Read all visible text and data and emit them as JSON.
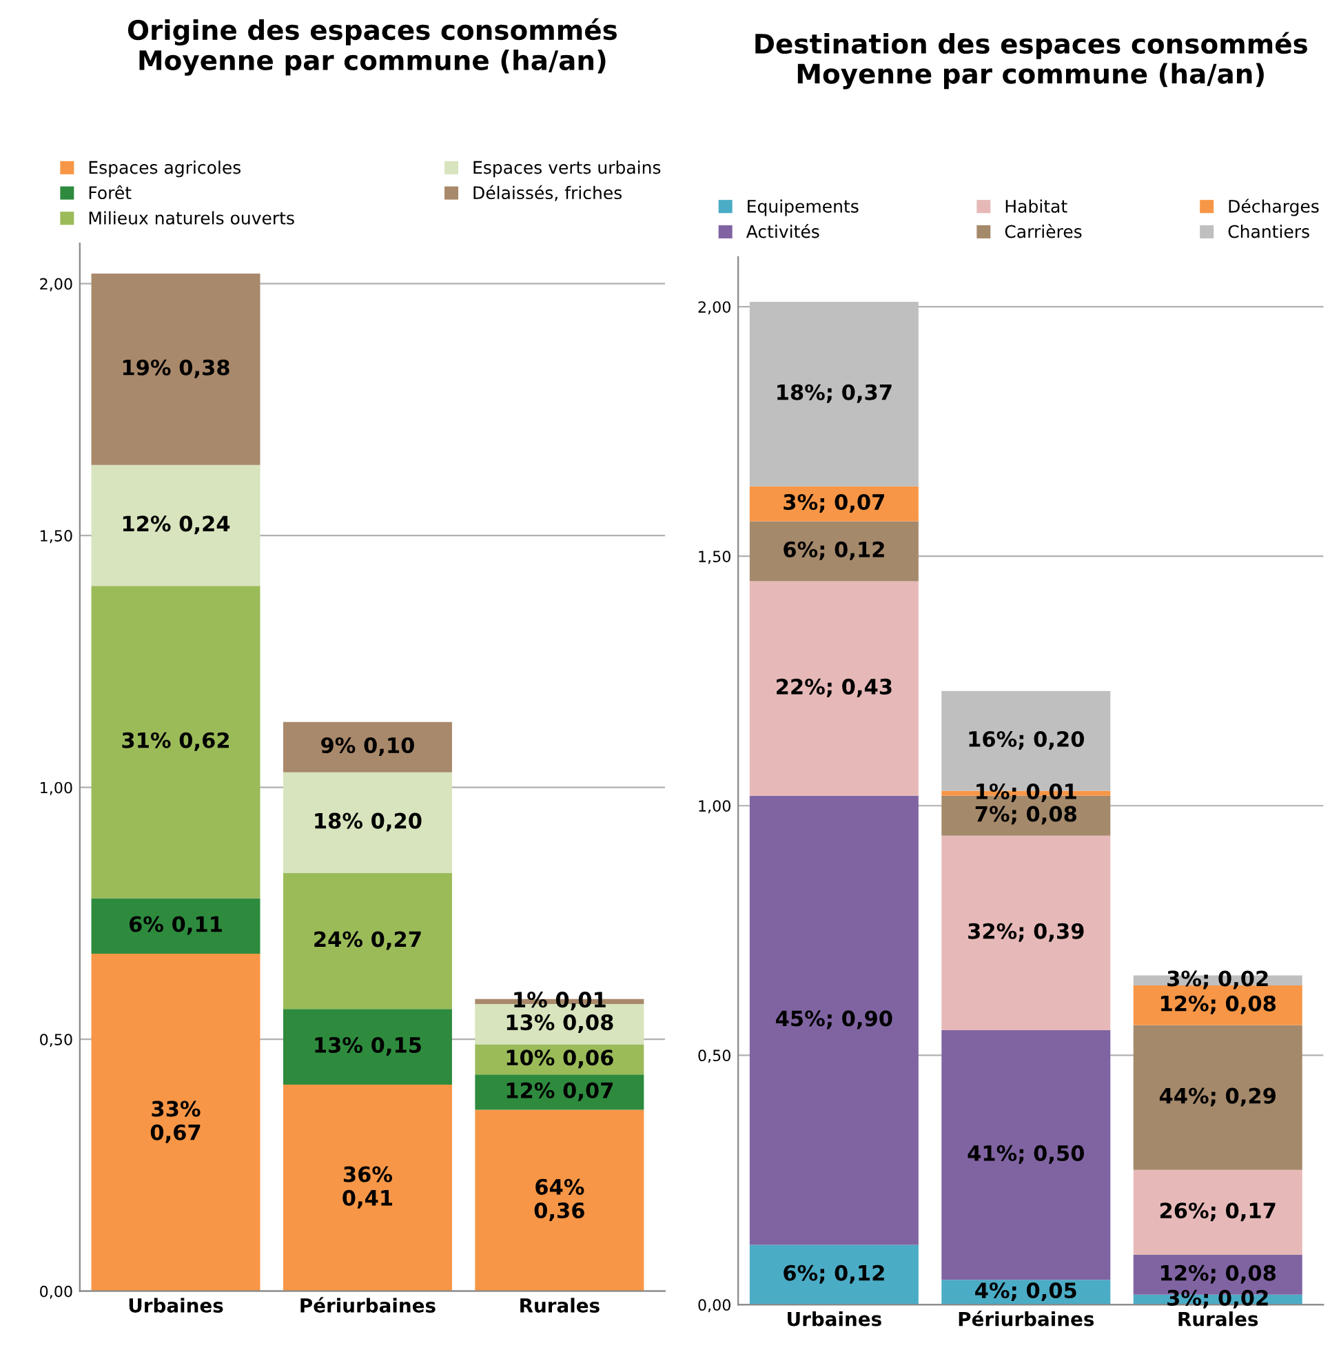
{
  "chart_data": [
    {
      "type": "bar",
      "stacked": true,
      "title": "Origine des espaces consommés\nMoyenne par commune (ha/an)",
      "categories": [
        "Urbaines",
        "Périurbaines",
        "Rurales"
      ],
      "ylim": [
        0,
        2.08
      ],
      "yticks": [
        {
          "value": 0,
          "label": "0,00"
        },
        {
          "value": 0.5,
          "label": "0,50"
        },
        {
          "value": 1,
          "label": "1,00"
        },
        {
          "value": 1.5,
          "label": "1,50"
        },
        {
          "value": 2,
          "label": "2,00"
        }
      ],
      "grid": "y",
      "legend": "top",
      "series": [
        {
          "name": "Espaces agricoles",
          "color": "#f79646",
          "values": [
            0.67,
            0.41,
            0.36
          ],
          "value_labels": [
            "33%\n0,67",
            "36%\n0,41",
            "64%\n0,36"
          ]
        },
        {
          "name": "Forêt",
          "color": "#2e8b3e",
          "values": [
            0.11,
            0.15,
            0.07
          ],
          "value_labels": [
            "6% 0,11",
            "13% 0,15",
            "12% 0,07"
          ]
        },
        {
          "name": "Milieux naturels ouverts",
          "color": "#9bbb59",
          "values": [
            0.62,
            0.27,
            0.06
          ],
          "value_labels": [
            "31% 0,62",
            "24% 0,27",
            "10% 0,06"
          ]
        },
        {
          "name": "Espaces verts urbains",
          "color": "#d7e4bd",
          "values": [
            0.24,
            0.2,
            0.08
          ],
          "value_labels": [
            "12% 0,24",
            "18% 0,20",
            "13% 0,08"
          ]
        },
        {
          "name": "Délaissés, friches",
          "color": "#a9896b",
          "values": [
            0.38,
            0.1,
            0.01
          ],
          "value_labels": [
            "19% 0,38",
            "9% 0,10",
            "1% 0,01"
          ]
        }
      ]
    },
    {
      "type": "bar",
      "stacked": true,
      "title": "Destination des espaces consommés\nMoyenne par commune (ha/an)",
      "categories": [
        "Urbaines",
        "Périurbaines",
        "Rurales"
      ],
      "ylim": [
        0,
        2.1
      ],
      "yticks": [
        {
          "value": 0,
          "label": "0,00"
        },
        {
          "value": 0.5,
          "label": "0,50"
        },
        {
          "value": 1,
          "label": "1,00"
        },
        {
          "value": 1.5,
          "label": "1,50"
        },
        {
          "value": 2,
          "label": "2,00"
        }
      ],
      "grid": "y",
      "legend": "top",
      "series": [
        {
          "name": "Equipements",
          "color": "#4bacc6",
          "values": [
            0.12,
            0.05,
            0.02
          ],
          "value_labels": [
            "6%; 0,12",
            "4%; 0,05",
            "3%; 0,02"
          ]
        },
        {
          "name": "Activités",
          "color": "#8064a2",
          "values": [
            0.9,
            0.5,
            0.08
          ],
          "value_labels": [
            "45%; 0,90",
            "41%; 0,50",
            "12%; 0,08"
          ]
        },
        {
          "name": "Habitat",
          "color": "#e6b9b8",
          "values": [
            0.43,
            0.39,
            0.17
          ],
          "value_labels": [
            "22%; 0,43",
            "32%; 0,39",
            "26%; 0,17"
          ]
        },
        {
          "name": "Carrières",
          "color": "#a5896b",
          "values": [
            0.12,
            0.08,
            0.29
          ],
          "value_labels": [
            "6%; 0,12",
            "7%; 0,08",
            "44%; 0,29"
          ]
        },
        {
          "name": "Décharges",
          "color": "#f79646",
          "values": [
            0.07,
            0.01,
            0.08
          ],
          "value_labels": [
            "3%; 0,07",
            "1%; 0,01",
            "12%; 0,08"
          ]
        },
        {
          "name": "Chantiers",
          "color": "#bfbfbf",
          "values": [
            0.37,
            0.2,
            0.02
          ],
          "value_labels": [
            "18%; 0,37",
            "16%; 0,20",
            "3%; 0,02"
          ]
        }
      ]
    }
  ]
}
